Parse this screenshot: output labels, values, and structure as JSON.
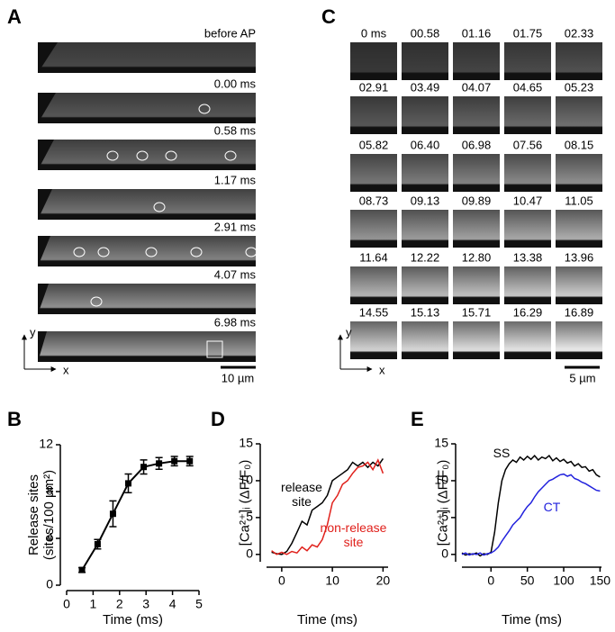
{
  "panel_labels": [
    "A",
    "B",
    "C",
    "D",
    "E"
  ],
  "panel_a": {
    "frames": [
      "before AP",
      "0.00 ms",
      "0.58 ms",
      "1.17 ms",
      "2.91 ms",
      "4.07 ms",
      "6.98 ms"
    ],
    "scale_bar": "10 µm",
    "axis_x": "x",
    "axis_y": "y"
  },
  "panel_c": {
    "frames": [
      "0 ms",
      "00.58",
      "01.16",
      "01.75",
      "02.33",
      "02.91",
      "03.49",
      "04.07",
      "04.65",
      "05.23",
      "05.82",
      "06.40",
      "06.98",
      "07.56",
      "08.15",
      "08.73",
      "09.13",
      "09.89",
      "10.47",
      "11.05",
      "11.64",
      "12.22",
      "12.80",
      "13.38",
      "13.96",
      "14.55",
      "15.13",
      "15.71",
      "16.29",
      "16.89"
    ],
    "scale_bar": "5 µm",
    "axis_x": "x",
    "axis_y": "y"
  },
  "chart_data": [
    {
      "type": "errorline",
      "ylabel": [
        "Release sites",
        "(sites/100 µm²)"
      ],
      "xlabel": "Time (ms)",
      "x": [
        0.58,
        1.17,
        1.75,
        2.33,
        2.91,
        3.49,
        4.07,
        4.65
      ],
      "values": [
        1.3,
        3.5,
        6.1,
        8.7,
        10.1,
        10.4,
        10.6,
        10.6
      ],
      "errors": [
        0.2,
        0.4,
        1.1,
        0.8,
        0.6,
        0.5,
        0.4,
        0.4
      ],
      "color": "#000000",
      "xlim": [
        0,
        5
      ],
      "xticks": [
        0,
        1,
        2,
        3,
        4,
        5
      ],
      "ylim": [
        0,
        12
      ],
      "yticks": [
        0,
        4,
        8,
        12
      ]
    },
    {
      "type": "line",
      "ylabel": [
        "[Ca²⁺]ᵢ (ΔF/F₀)"
      ],
      "xlabel": "Time (ms)",
      "x": [
        -2,
        -1,
        0,
        1,
        2,
        3,
        4,
        5,
        6,
        7,
        8,
        9,
        10,
        11,
        12,
        13,
        14,
        15,
        16,
        17,
        18,
        19,
        20
      ],
      "series": [
        {
          "name": "release site",
          "color": "#000000",
          "values": [
            0.3,
            0.1,
            0,
            0.4,
            1.5,
            3,
            4.5,
            4,
            6,
            6.5,
            7,
            8,
            10,
            10.5,
            11,
            11.5,
            12.5,
            12,
            12.5,
            11.8,
            12.5,
            12,
            13
          ]
        },
        {
          "name": "non-release site",
          "color": "#e0201b",
          "values": [
            0.5,
            0,
            0.3,
            0,
            0.4,
            0.2,
            1,
            0.5,
            1.3,
            1,
            2,
            4,
            7,
            8,
            9.5,
            10,
            11,
            11.8,
            12,
            12.5,
            11.5,
            12.8,
            11
          ]
        }
      ],
      "xlim": [
        -3,
        21
      ],
      "xticks": [
        0,
        10,
        20
      ],
      "ylim": [
        -1,
        15
      ],
      "yticks": [
        0,
        5,
        10,
        15
      ]
    },
    {
      "type": "line",
      "ylabel": [
        "[Ca²⁺]ᵢ (ΔF/F₀)"
      ],
      "xlabel": "Time (ms)",
      "x": [
        -40,
        -35,
        -30,
        -25,
        -20,
        -15,
        -10,
        -5,
        0,
        5,
        10,
        15,
        20,
        25,
        30,
        35,
        40,
        45,
        50,
        55,
        60,
        65,
        70,
        75,
        80,
        85,
        90,
        95,
        100,
        105,
        110,
        115,
        120,
        125,
        130,
        135,
        140,
        145,
        150
      ],
      "series": [
        {
          "name": "SS",
          "color": "#000000",
          "values": [
            0.2,
            -0.1,
            0.1,
            0,
            0.2,
            -0.2,
            0.1,
            0,
            0.3,
            3,
            7,
            10,
            11.5,
            12.3,
            12.8,
            12.5,
            13.2,
            12.8,
            13.3,
            12.9,
            13.4,
            12.8,
            13.2,
            13,
            13.4,
            12.7,
            13.1,
            12.6,
            12.9,
            12.4,
            12.6,
            12,
            12.3,
            11.8,
            11.9,
            11.3,
            11.5,
            10.8,
            10.5
          ]
        },
        {
          "name": "CT",
          "color": "#2222dd",
          "values": [
            0,
            0.2,
            -0.1,
            0.1,
            0,
            0.2,
            -0.1,
            0.1,
            0.2,
            0.5,
            1,
            1.8,
            2.5,
            3.2,
            4,
            4.5,
            5,
            5.8,
            6.5,
            7,
            7.8,
            8.5,
            9,
            9.5,
            10,
            10.2,
            10.5,
            10.8,
            10.9,
            10.6,
            10.8,
            10.3,
            10.1,
            9.8,
            9.6,
            9.3,
            9,
            8.7,
            8.6
          ]
        }
      ],
      "xlim": [
        -40,
        152
      ],
      "xticks": [
        0,
        50,
        100,
        150
      ],
      "ylim": [
        -1,
        15
      ],
      "yticks": [
        0,
        5,
        10,
        15
      ]
    }
  ]
}
